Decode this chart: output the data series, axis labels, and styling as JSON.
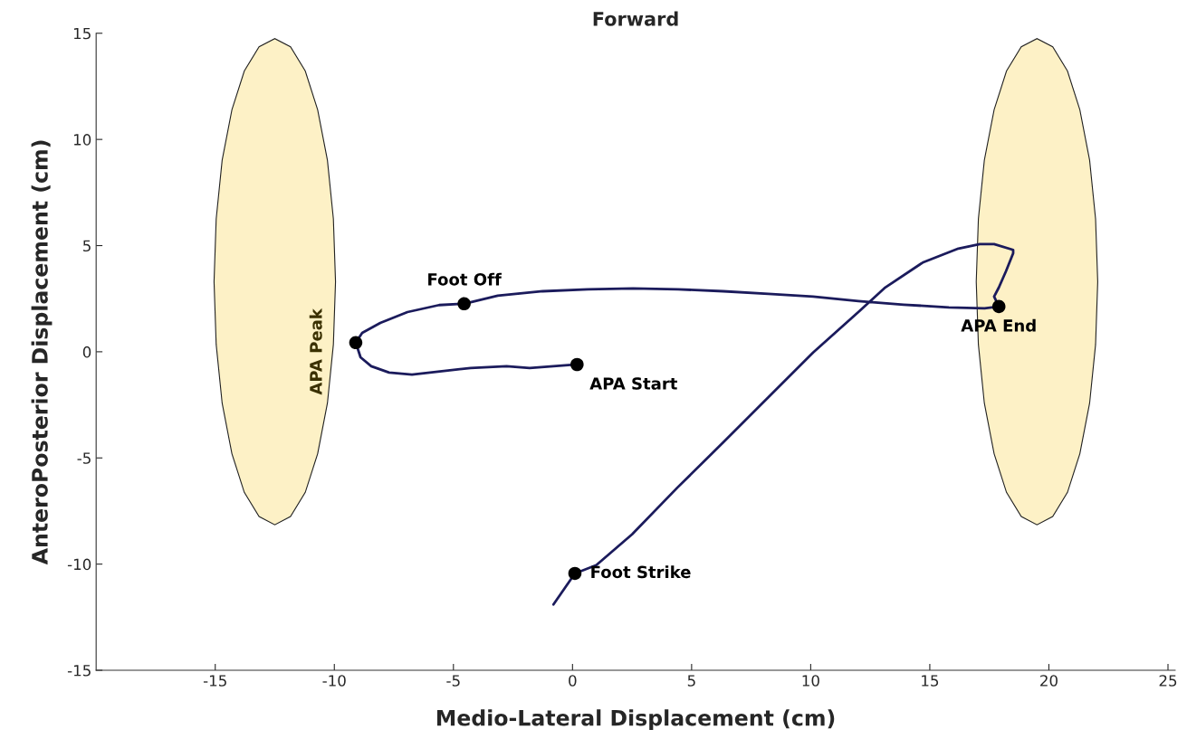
{
  "chart_data": {
    "type": "line",
    "title": "Forward",
    "xlabel": "Medio-Lateral Displacement (cm)",
    "ylabel": "AnteroPosterior Displacement (cm)",
    "xlim": [
      -20,
      25.3
    ],
    "ylim": [
      -15,
      15
    ],
    "xticks": [
      -15,
      -10,
      -5,
      0,
      5,
      10,
      15,
      20,
      25
    ],
    "yticks": [
      -15,
      -10,
      -5,
      0,
      5,
      10,
      15
    ],
    "grid": false,
    "series": [
      {
        "type": "area",
        "color": "#fdf1c6",
        "x": [
          -9.95,
          -10.04,
          -10.29,
          -10.7,
          -11.22,
          -11.84,
          -12.5,
          -13.16,
          -13.78,
          -14.3,
          -14.71,
          -14.96,
          -15.05,
          -14.96,
          -14.71,
          -14.3,
          -13.78,
          -13.16,
          -12.5,
          -11.84,
          -11.22,
          -10.7,
          -10.29,
          -10.04
        ],
        "values": [
          3.3,
          6.26,
          9.02,
          11.4,
          13.22,
          14.36,
          14.75,
          14.36,
          13.22,
          11.4,
          9.02,
          6.26,
          3.3,
          0.34,
          -2.42,
          -4.8,
          -6.62,
          -7.76,
          -8.15,
          -7.76,
          -6.62,
          -4.8,
          -2.42,
          0.34
        ]
      },
      {
        "type": "area",
        "color": "#fdf1c6",
        "x": [
          22.05,
          21.96,
          21.71,
          21.3,
          20.78,
          20.16,
          19.5,
          18.84,
          18.22,
          17.7,
          17.29,
          17.04,
          16.95,
          17.04,
          17.29,
          17.7,
          18.22,
          18.84,
          19.5,
          20.16,
          20.78,
          21.3,
          21.71,
          21.96
        ],
        "values": [
          3.3,
          6.26,
          9.02,
          11.4,
          13.22,
          14.36,
          14.75,
          14.36,
          13.22,
          11.4,
          9.02,
          6.26,
          3.3,
          0.34,
          -2.42,
          -4.8,
          -6.62,
          -7.76,
          -8.15,
          -7.76,
          -6.62,
          -4.8,
          -2.42,
          0.34
        ]
      },
      {
        "color": "#1b1b5c",
        "x": [
          0.19,
          -1.8,
          -2.77,
          -4.28,
          -5.4,
          -6.74,
          -7.7,
          -8.45,
          -8.9,
          -9.1,
          -8.83,
          -8.07,
          -6.93,
          -5.6,
          -4.55,
          -3.14,
          -1.25,
          0.64,
          2.54,
          4.43,
          6.33,
          8.22,
          10.1,
          12.0,
          13.9,
          15.8,
          17.3,
          17.9,
          17.7,
          17.9,
          18.2,
          18.5,
          18.5,
          17.7,
          17.1,
          16.2,
          14.7,
          13.1,
          12.0,
          10.1,
          8.2,
          6.3,
          4.4,
          2.5,
          1.0,
          0.1,
          -0.8
        ],
        "values": [
          -0.6,
          -0.77,
          -0.68,
          -0.77,
          -0.9,
          -1.07,
          -0.98,
          -0.68,
          -0.26,
          0.43,
          0.89,
          1.36,
          1.87,
          2.2,
          2.26,
          2.64,
          2.85,
          2.94,
          2.98,
          2.94,
          2.85,
          2.73,
          2.6,
          2.39,
          2.22,
          2.09,
          2.05,
          2.13,
          2.6,
          3.03,
          3.8,
          4.64,
          4.8,
          5.07,
          5.07,
          4.86,
          4.2,
          3.0,
          1.87,
          -0.04,
          -2.17,
          -4.3,
          -6.4,
          -8.6,
          -10.05,
          -10.44,
          -11.9
        ]
      },
      {
        "type": "scatter",
        "color": "#000000",
        "marker": "circle",
        "x": [
          0.19,
          -9.1,
          -4.55,
          17.9,
          0.1
        ],
        "values": [
          -0.6,
          0.43,
          2.26,
          2.13,
          -10.44
        ]
      }
    ],
    "annotations": [
      {
        "text": "APA Start",
        "x": 0.19,
        "y": -0.6
      },
      "APA Peak",
      {
        "text": "Foot Off",
        "x": -4.55,
        "y": 2.26
      },
      {
        "text": "APA End",
        "x": 17.9,
        "y": 2.13
      },
      {
        "text": "Foot Strike",
        "x": 0.1,
        "y": -10.44
      }
    ]
  }
}
